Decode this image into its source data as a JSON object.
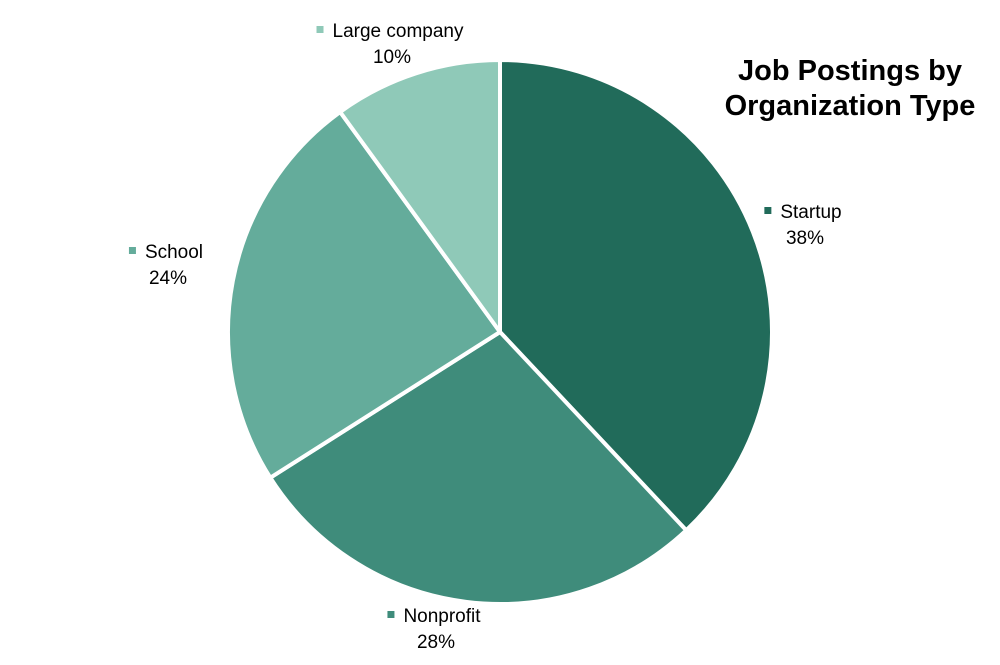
{
  "chart_data": {
    "type": "pie",
    "title": "Job Postings by Organization Type",
    "title_lines": [
      "Job Postings by",
      "Organization Type"
    ],
    "legend": "none",
    "slices": [
      {
        "label": "Startup",
        "value": 38,
        "value_label": "38%",
        "color": "#216b5a"
      },
      {
        "label": "Nonprofit",
        "value": 28,
        "value_label": "28%",
        "color": "#3f8c7b"
      },
      {
        "label": "School",
        "value": 24,
        "value_label": "24%",
        "color": "#64ac9b"
      },
      {
        "label": "Large company",
        "value": 10,
        "value_label": "10%",
        "color": "#8fc9b8"
      }
    ]
  }
}
